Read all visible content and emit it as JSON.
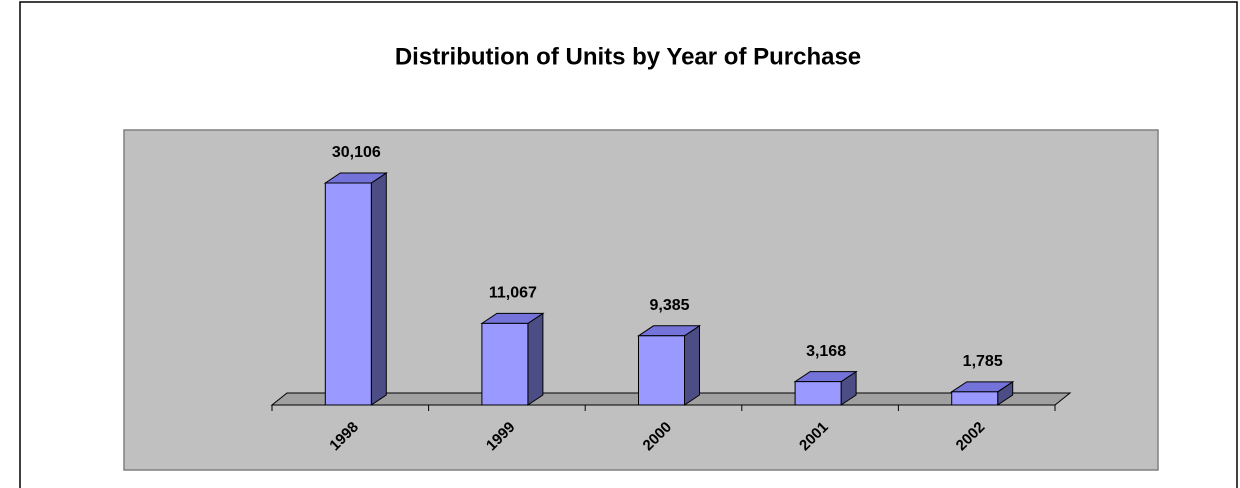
{
  "chart_data": {
    "type": "bar3d",
    "title": "Distribution of Units by Year of Purchase",
    "categories": [
      "1998",
      "1999",
      "2000",
      "2001",
      "2002"
    ],
    "values": [
      30106,
      11067,
      9385,
      3168,
      1785
    ],
    "value_labels": [
      "30,106",
      "11,067",
      "9,385",
      "3,168",
      "1,785"
    ],
    "color": "#9999ff"
  }
}
